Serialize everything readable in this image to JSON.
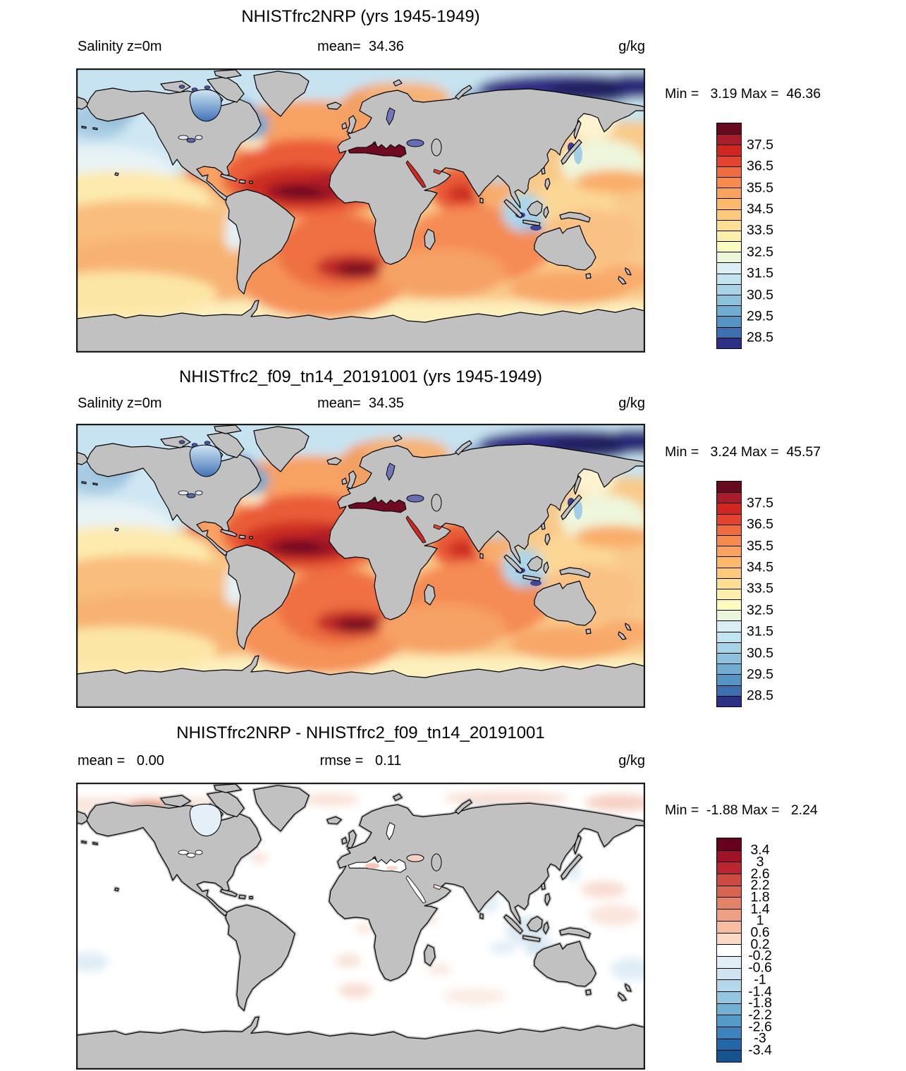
{
  "page": {
    "background": "#ffffff",
    "land_color": "#c1c1c1",
    "coastline_color": "#000000"
  },
  "panels": [
    {
      "title": "NHISTfrc2NRP (yrs 1945-1949)",
      "field": "Salinity z=0m",
      "center_stat": "mean=  34.36",
      "units": "g/kg",
      "minmax": "Min =   3.19 Max =  46.36"
    },
    {
      "title": "NHISTfrc2_f09_tn14_20191001 (yrs 1945-1949)",
      "field": "Salinity z=0m",
      "center_stat": "mean=  34.35",
      "units": "g/kg",
      "minmax": "Min =   3.24 Max =  45.57"
    },
    {
      "title": "NHISTfrc2NRP - NHISTfrc2_f09_tn14_20191001",
      "field": "mean =   0.00",
      "center_stat": "rmse =   0.11",
      "units": "g/kg",
      "minmax": "Min =  -1.88 Max =   2.24"
    }
  ],
  "colorbars": {
    "salinity": {
      "width": 34,
      "seg_h": 15.2,
      "colors": [
        "#670a20",
        "#a81c2b",
        "#d0261f",
        "#e2442f",
        "#ef6b40",
        "#f68a4f",
        "#f9a25d",
        "#fcb96c",
        "#fdca7d",
        "#fede93",
        "#feeeab",
        "#fdfcc0",
        "#ecf7da",
        "#d9eff4",
        "#c2e3f0",
        "#a9d4e8",
        "#8dc2dd",
        "#70add1",
        "#5594c3",
        "#3d6fb1",
        "#2c3185"
      ],
      "labels": [
        "37.5",
        "36.5",
        "35.5",
        "34.5",
        "33.5",
        "32.5",
        "31.5",
        "30.5",
        "29.5",
        "28.5"
      ],
      "label_boundaries": [
        2,
        4,
        6,
        8,
        10,
        12,
        14,
        16,
        18,
        20
      ]
    },
    "difference": {
      "width": 34,
      "seg_h": 16.7,
      "colors": [
        "#67001f",
        "#a01228",
        "#bb2533",
        "#cb4a42",
        "#d86551",
        "#e38266",
        "#eda083",
        "#f6bda1",
        "#fbd9c3",
        "#ffffff",
        "#e2eef5",
        "#cee4f1",
        "#b4d7eb",
        "#94c6e0",
        "#72b1d3",
        "#549bc8",
        "#3b84bd",
        "#2367a9",
        "#16548f"
      ],
      "labels": [
        "3.4",
        "3",
        "2.6",
        "2.2",
        "1.8",
        "1.4",
        "1",
        "0.6",
        "0.2",
        "-0.2",
        "-0.6",
        "-1",
        "-1.4",
        "-1.8",
        "-2.2",
        "-2.6",
        "-3",
        "-3.4"
      ],
      "label_boundaries": [
        1,
        2,
        3,
        4,
        5,
        6,
        7,
        8,
        9,
        10,
        11,
        12,
        13,
        14,
        15,
        16,
        17,
        18
      ]
    }
  },
  "chart_data": [
    {
      "type": "heatmap",
      "subtype": "global filled-contour map",
      "title": "NHISTfrc2NRP (yrs 1945-1949)",
      "variable": "Salinity",
      "depth": "z=0m",
      "units": "g/kg",
      "mean": 34.36,
      "min": 3.19,
      "max": 46.36,
      "colorbar_range": [
        28.0,
        38.5
      ],
      "contour_interval": 0.5,
      "labeled_levels": [
        28.5,
        29.5,
        30.5,
        31.5,
        32.5,
        33.5,
        34.5,
        35.5,
        36.5,
        37.5
      ],
      "legend_position": "right",
      "notes": "High salinity (dark red) in subtropical Atlantic and Mediterranean; low salinity (dark blue) along Arctic Siberian coast; land masked gray"
    },
    {
      "type": "heatmap",
      "subtype": "global filled-contour map",
      "title": "NHISTfrc2_f09_tn14_20191001 (yrs 1945-1949)",
      "variable": "Salinity",
      "depth": "z=0m",
      "units": "g/kg",
      "mean": 34.35,
      "min": 3.24,
      "max": 45.57,
      "colorbar_range": [
        28.0,
        38.5
      ],
      "contour_interval": 0.5,
      "labeled_levels": [
        28.5,
        29.5,
        30.5,
        31.5,
        32.5,
        33.5,
        34.5,
        35.5,
        36.5,
        37.5
      ],
      "legend_position": "right"
    },
    {
      "type": "heatmap",
      "subtype": "global difference map",
      "title": "NHISTfrc2NRP - NHISTfrc2_f09_tn14_20191001",
      "variable": "Salinity difference",
      "units": "g/kg",
      "mean": 0.0,
      "rmse": 0.11,
      "min": -1.88,
      "max": 2.24,
      "colorbar_range": [
        -3.8,
        3.8
      ],
      "contour_interval": 0.4,
      "labeled_levels": [
        -3.4,
        -3,
        -2.6,
        -2.2,
        -1.8,
        -1.4,
        -1,
        -0.6,
        -0.2,
        0.2,
        0.6,
        1,
        1.4,
        1.8,
        2.2,
        2.6,
        3,
        3.4
      ],
      "legend_position": "right",
      "notes": "Ocean mostly near zero (white); small warm anomaly near Bering/Chukchi coast; faint patches elsewhere"
    }
  ]
}
